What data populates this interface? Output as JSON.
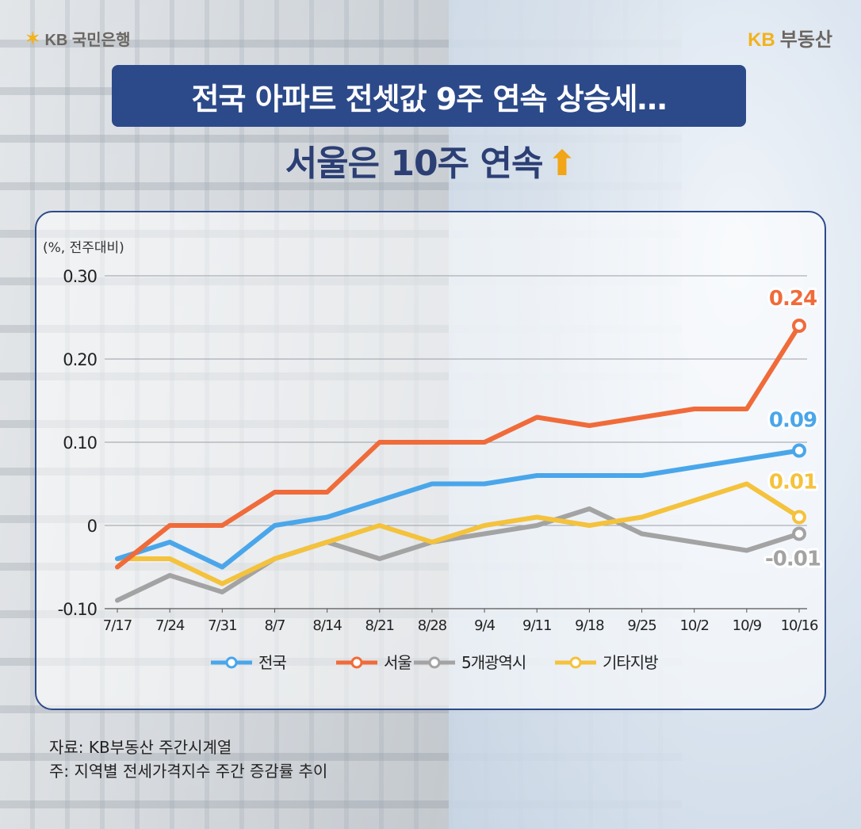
{
  "header": {
    "logo_left": "KB 국민은행",
    "logo_right_kb": "KB",
    "logo_right_text": "부동산"
  },
  "title": {
    "line1": "전국 아파트 전셋값 9주 연속 상승세…",
    "line2": "서울은 10주 연속"
  },
  "footer": {
    "source": "자료: KB부동산 주간시계열",
    "note": "주: 지역별 전세가격지수 주간 증감률 추이"
  },
  "chart_data": {
    "type": "line",
    "unit_label": "(%, 전주대비)",
    "categories": [
      "7/17",
      "7/24",
      "7/31",
      "8/7",
      "8/14",
      "8/21",
      "8/28",
      "9/4",
      "9/11",
      "9/18",
      "9/25",
      "10/2",
      "10/9",
      "10/16"
    ],
    "ylim": [
      -0.1,
      0.3
    ],
    "yticks": [
      {
        "value": 0.3,
        "label": "0.30"
      },
      {
        "value": 0.2,
        "label": "0.20"
      },
      {
        "value": 0.1,
        "label": "0.10"
      },
      {
        "value": 0,
        "label": "0"
      },
      {
        "value": -0.1,
        "label": "-0.10"
      }
    ],
    "series": [
      {
        "name": "전국",
        "color": "#4aa6ea",
        "values": [
          -0.04,
          -0.02,
          -0.05,
          0.0,
          0.01,
          0.03,
          0.05,
          0.05,
          0.06,
          0.06,
          0.06,
          0.07,
          0.08,
          0.09
        ],
        "end_label": "0.09"
      },
      {
        "name": "서울",
        "color": "#f06b3a",
        "values": [
          -0.05,
          0.0,
          0.0,
          0.04,
          0.04,
          0.1,
          0.1,
          0.1,
          0.13,
          0.12,
          0.13,
          0.14,
          0.14,
          0.24
        ],
        "end_label": "0.24"
      },
      {
        "name": "5개광역시",
        "color": "#a3a3a3",
        "values": [
          -0.09,
          -0.06,
          -0.08,
          -0.04,
          -0.02,
          -0.04,
          -0.02,
          -0.01,
          0.0,
          0.02,
          -0.01,
          -0.02,
          -0.03,
          -0.01
        ],
        "end_label": "-0.01"
      },
      {
        "name": "기타지방",
        "color": "#f4c23c",
        "values": [
          -0.04,
          -0.04,
          -0.07,
          -0.04,
          -0.02,
          0.0,
          -0.02,
          0.0,
          0.01,
          0.0,
          0.01,
          0.03,
          0.05,
          0.01
        ],
        "end_label": "0.01"
      }
    ]
  }
}
